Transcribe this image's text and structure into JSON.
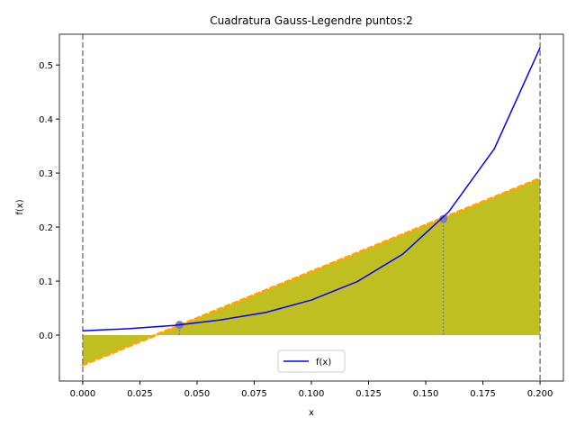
{
  "chart_data": {
    "type": "line",
    "title": "Cuadratura Gauss-Legendre puntos:2",
    "x_label": "x",
    "y_label": "f(x)",
    "xlim": [
      -0.0102,
      0.2102
    ],
    "ylim": [
      -0.085,
      0.557
    ],
    "xticks": [
      {
        "value": 0,
        "label": "0.000"
      },
      {
        "value": 0.025,
        "label": "0.025"
      },
      {
        "value": 0.05,
        "label": "0.050"
      },
      {
        "value": 0.075,
        "label": "0.075"
      },
      {
        "value": 0.1,
        "label": "0.100"
      },
      {
        "value": 0.125,
        "label": "0.125"
      },
      {
        "value": 0.15,
        "label": "0.150"
      },
      {
        "value": 0.175,
        "label": "0.175"
      },
      {
        "value": 0.2,
        "label": "0.200"
      }
    ],
    "yticks": [
      {
        "value": 0,
        "label": "0.0"
      },
      {
        "value": 0.1,
        "label": "0.1"
      },
      {
        "value": 0.2,
        "label": "0.2"
      },
      {
        "value": 0.3,
        "label": "0.3"
      },
      {
        "value": 0.4,
        "label": "0.4"
      },
      {
        "value": 0.5,
        "label": "0.5"
      }
    ],
    "series": [
      {
        "name": "f(x)",
        "color": "#0000ff",
        "x": [
          0,
          0.02,
          0.04,
          0.06,
          0.08,
          0.1,
          0.12,
          0.14,
          0.16,
          0.18,
          0.2
        ],
        "values": [
          0.008,
          0.012,
          0.018,
          0.028,
          0.042,
          0.065,
          0.099,
          0.15,
          0.228,
          0.345,
          0.532
        ]
      }
    ],
    "fill": {
      "color": "#bfbf22",
      "edge_color": "#ffa500",
      "x": [
        0,
        0.2
      ],
      "values": [
        -0.055,
        0.29
      ]
    },
    "points": {
      "color": "#7f80a8",
      "x": [
        0.0423,
        0.1577
      ],
      "values": [
        0.019,
        0.215
      ]
    },
    "vlines": [
      0,
      0.2
    ],
    "legend": "lower center"
  }
}
